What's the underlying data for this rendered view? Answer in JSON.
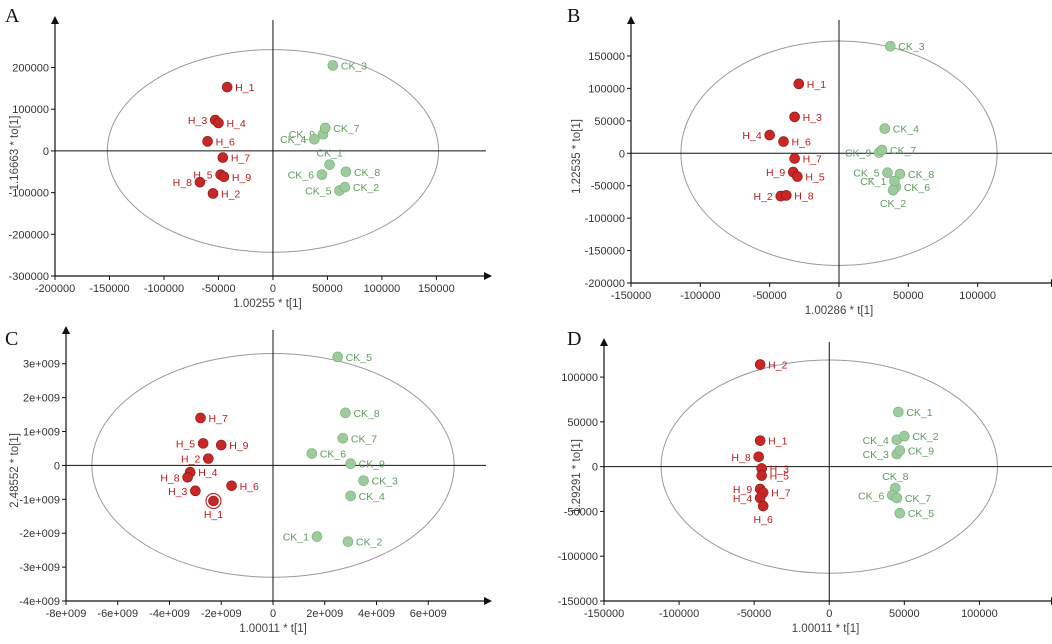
{
  "colors": {
    "h": "#c62828",
    "ck": "#9ccc9c",
    "ck_text": "#5f9a5f",
    "h_text": "#b71c1c",
    "axis": "#111111",
    "ellipse": "#9a9a9a"
  },
  "chart_data": [
    {
      "type": "scatter",
      "panel": "A",
      "xlabel": "1.00255 * t[1]",
      "ylabel": "1.16663 * to[1]",
      "xlim": [
        -200000,
        190000
      ],
      "ylim": [
        -300000,
        290000
      ],
      "xticks": [
        -200000,
        -150000,
        -100000,
        -50000,
        0,
        50000,
        100000,
        150000
      ],
      "xtick_labels": [
        "-200000",
        "-150000",
        "-100000",
        "-50000",
        "0",
        "50000",
        "100000",
        "150000"
      ],
      "yticks": [
        -300000,
        -200000,
        -100000,
        0,
        100000,
        200000
      ],
      "ytick_labels": [
        "-300000",
        "-200000",
        "-100000",
        "0",
        "100000",
        "200000"
      ],
      "ellipse": {
        "rx": 152000,
        "ry": 243000
      },
      "series": [
        {
          "name": "H",
          "points": [
            {
              "label": "H_1",
              "x": -42000,
              "y": 153000,
              "side": "right"
            },
            {
              "label": "H_3",
              "x": -53000,
              "y": 74000,
              "side": "left"
            },
            {
              "label": "H_4",
              "x": -50000,
              "y": 67000,
              "side": "right"
            },
            {
              "label": "H_6",
              "x": -60000,
              "y": 23000,
              "side": "right"
            },
            {
              "label": "H_7",
              "x": -46000,
              "y": -16000,
              "side": "right"
            },
            {
              "label": "H_5",
              "x": -48000,
              "y": -57000,
              "side": "left"
            },
            {
              "label": "H_9",
              "x": -45000,
              "y": -62000,
              "side": "right"
            },
            {
              "label": "H_8",
              "x": -67000,
              "y": -75000,
              "side": "left"
            },
            {
              "label": "H_2",
              "x": -55000,
              "y": -102000,
              "side": "right"
            }
          ]
        },
        {
          "name": "CK",
          "points": [
            {
              "label": "CK_3",
              "x": 55000,
              "y": 205000,
              "side": "right"
            },
            {
              "label": "CK_9",
              "x": 46000,
              "y": 40000,
              "side": "left"
            },
            {
              "label": "CK_7",
              "x": 48000,
              "y": 55000,
              "side": "right"
            },
            {
              "label": "CK_4",
              "x": 38000,
              "y": 28000,
              "side": "left"
            },
            {
              "label": "CK_1",
              "x": 52000,
              "y": -33000,
              "side": "top"
            },
            {
              "label": "CK_6",
              "x": 45000,
              "y": -57000,
              "side": "left"
            },
            {
              "label": "CK_8",
              "x": 67000,
              "y": -50000,
              "side": "right"
            },
            {
              "label": "CK_5",
              "x": 61000,
              "y": -95000,
              "side": "left"
            },
            {
              "label": "CK_2",
              "x": 66000,
              "y": -87000,
              "side": "right"
            }
          ]
        }
      ]
    },
    {
      "type": "scatter",
      "panel": "B",
      "xlabel": "1.00286 * t[1]",
      "ylabel": "1.22535 * to[1]",
      "xlim": [
        -150000,
        150000
      ],
      "ylim": [
        -200000,
        190000
      ],
      "xticks": [
        -150000,
        -100000,
        -50000,
        0,
        50000,
        100000
      ],
      "xtick_labels": [
        "-150000",
        "-100000",
        "-50000",
        "0",
        "50000",
        "100000"
      ],
      "yticks": [
        -200000,
        -150000,
        -100000,
        -50000,
        0,
        50000,
        100000,
        150000
      ],
      "ytick_labels": [
        "-200000",
        "-150000",
        "-100000",
        "-50000",
        "0",
        "50000",
        "100000",
        "150000"
      ],
      "ellipse": {
        "rx": 114000,
        "ry": 173000
      },
      "series": [
        {
          "name": "H",
          "points": [
            {
              "label": "H_1",
              "x": -29000,
              "y": 107000,
              "side": "right"
            },
            {
              "label": "H_3",
              "x": -32000,
              "y": 56000,
              "side": "right"
            },
            {
              "label": "H_4",
              "x": -50000,
              "y": 28000,
              "side": "left"
            },
            {
              "label": "H_6",
              "x": -40000,
              "y": 18000,
              "side": "right"
            },
            {
              "label": "H_7",
              "x": -32000,
              "y": -8000,
              "side": "right"
            },
            {
              "label": "H_9",
              "x": -33000,
              "y": -29000,
              "side": "left"
            },
            {
              "label": "H_5",
              "x": -30000,
              "y": -36000,
              "side": "right"
            },
            {
              "label": "H_2",
              "x": -42000,
              "y": -66000,
              "side": "left"
            },
            {
              "label": "H_8",
              "x": -38000,
              "y": -65000,
              "side": "right"
            }
          ]
        },
        {
          "name": "CK",
          "points": [
            {
              "label": "CK_3",
              "x": 37000,
              "y": 165000,
              "side": "right"
            },
            {
              "label": "CK_4",
              "x": 33000,
              "y": 38000,
              "side": "right"
            },
            {
              "label": "CK_9",
              "x": 29000,
              "y": 1000,
              "side": "left"
            },
            {
              "label": "CK_7",
              "x": 31000,
              "y": 5000,
              "side": "right"
            },
            {
              "label": "CK_5",
              "x": 35000,
              "y": -30000,
              "side": "left"
            },
            {
              "label": "CK_8",
              "x": 44000,
              "y": -32000,
              "side": "right"
            },
            {
              "label": "CK_6",
              "x": 41000,
              "y": -52000,
              "side": "right"
            },
            {
              "label": "CK_1",
              "x": 40000,
              "y": -43000,
              "side": "left"
            },
            {
              "label": "CK_2",
              "x": 39000,
              "y": -57000,
              "side": "bottom"
            }
          ]
        }
      ]
    },
    {
      "type": "scatter",
      "panel": "C",
      "xlabel": "1.00011 * t[1]",
      "ylabel": "2.48552 * to[1]",
      "xlim": [
        -8000000000,
        8000000000
      ],
      "ylim": [
        -4000000000,
        3700000000
      ],
      "xticks": [
        -8000000000,
        -6000000000,
        -4000000000,
        -2000000000,
        0,
        2000000000,
        4000000000,
        6000000000
      ],
      "xtick_labels": [
        "-8e+009",
        "-6e+009",
        "-4e+009",
        "-2e+009",
        "0",
        "2e+009",
        "4e+009",
        "6e+009"
      ],
      "yticks": [
        -4000000000,
        -3000000000,
        -2000000000,
        -1000000000,
        0,
        1000000000,
        2000000000,
        3000000000
      ],
      "ytick_labels": [
        "-4e+009",
        "-3e+009",
        "-2e+009",
        "-1e+009",
        "0",
        "1e+009",
        "2e+009",
        "3e+009"
      ],
      "ellipse": {
        "rx": 7000000000,
        "ry": 3300000000
      },
      "series": [
        {
          "name": "H",
          "points": [
            {
              "label": "H_7",
              "x": -2800000000,
              "y": 1400000000,
              "side": "right"
            },
            {
              "label": "H_5",
              "x": -2700000000,
              "y": 650000000,
              "side": "left"
            },
            {
              "label": "H_9",
              "x": -2000000000,
              "y": 600000000,
              "side": "right"
            },
            {
              "label": "H_2",
              "x": -2500000000,
              "y": 200000000,
              "side": "left"
            },
            {
              "label": "H_4",
              "x": -3200000000,
              "y": -200000000,
              "side": "right"
            },
            {
              "label": "H_8",
              "x": -3300000000,
              "y": -350000000,
              "side": "left"
            },
            {
              "label": "H_3",
              "x": -3000000000,
              "y": -750000000,
              "side": "left"
            },
            {
              "label": "H_6",
              "x": -1600000000,
              "y": -600000000,
              "side": "right"
            },
            {
              "label": "H_1",
              "x": -2300000000,
              "y": -1050000000,
              "side": "bottom",
              "ring": true
            }
          ]
        },
        {
          "name": "CK",
          "points": [
            {
              "label": "CK_5",
              "x": 2500000000,
              "y": 3200000000,
              "side": "right"
            },
            {
              "label": "CK_8",
              "x": 2800000000,
              "y": 1550000000,
              "side": "right"
            },
            {
              "label": "CK_7",
              "x": 2700000000,
              "y": 800000000,
              "side": "right"
            },
            {
              "label": "CK_6",
              "x": 1500000000,
              "y": 350000000,
              "side": "right"
            },
            {
              "label": "CK_9",
              "x": 3000000000,
              "y": 50000000,
              "side": "right"
            },
            {
              "label": "CK_3",
              "x": 3500000000,
              "y": -450000000,
              "side": "right"
            },
            {
              "label": "CK_4",
              "x": 3000000000,
              "y": -900000000,
              "side": "right"
            },
            {
              "label": "CK_1",
              "x": 1700000000,
              "y": -2100000000,
              "side": "left"
            },
            {
              "label": "CK_2",
              "x": 2900000000,
              "y": -2250000000,
              "side": "right"
            }
          ]
        }
      ]
    },
    {
      "type": "scatter",
      "panel": "D",
      "xlabel": "1.00011 * t[1]",
      "ylabel": "1.29291 * to[1]",
      "xlim": [
        -150000,
        145000
      ],
      "ylim": [
        -150000,
        128000
      ],
      "xticks": [
        -150000,
        -100000,
        -50000,
        0,
        50000,
        100000
      ],
      "xtick_labels": [
        "-150000",
        "-100000",
        "-50000",
        "0",
        "50000",
        "100000"
      ],
      "yticks": [
        -150000,
        -100000,
        -50000,
        0,
        50000,
        100000
      ],
      "ytick_labels": [
        "-150000",
        "-100000",
        "-50000",
        "0",
        "50000",
        "100000"
      ],
      "ellipse": {
        "rx": 112000,
        "ry": 119000
      },
      "series": [
        {
          "name": "H",
          "points": [
            {
              "label": "H_2",
              "x": -46000,
              "y": 114000,
              "side": "right"
            },
            {
              "label": "H_1",
              "x": -46000,
              "y": 29000,
              "side": "right"
            },
            {
              "label": "H_8",
              "x": -47000,
              "y": 11000,
              "side": "left"
            },
            {
              "label": "H_3",
              "x": -45000,
              "y": -2000,
              "side": "right"
            },
            {
              "label": "H_5",
              "x": -45000,
              "y": -10000,
              "side": "right"
            },
            {
              "label": "H_9",
              "x": -46000,
              "y": -25000,
              "side": "left"
            },
            {
              "label": "H_7",
              "x": -44000,
              "y": -29000,
              "side": "right"
            },
            {
              "label": "H_4",
              "x": -46000,
              "y": -35000,
              "side": "left"
            },
            {
              "label": "H_6",
              "x": -44000,
              "y": -44000,
              "side": "bottom"
            }
          ]
        },
        {
          "name": "CK",
          "points": [
            {
              "label": "CK_1",
              "x": 46000,
              "y": 61000,
              "side": "right"
            },
            {
              "label": "CK_4",
              "x": 45000,
              "y": 30000,
              "side": "left"
            },
            {
              "label": "CK_2",
              "x": 50000,
              "y": 34000,
              "side": "right"
            },
            {
              "label": "CK_3",
              "x": 45000,
              "y": 14000,
              "side": "left"
            },
            {
              "label": "CK_9",
              "x": 47000,
              "y": 18000,
              "side": "right"
            },
            {
              "label": "CK_8",
              "x": 44000,
              "y": -24000,
              "side": "top"
            },
            {
              "label": "CK_6",
              "x": 42000,
              "y": -32000,
              "side": "left"
            },
            {
              "label": "CK_7",
              "x": 45000,
              "y": -35000,
              "side": "right"
            },
            {
              "label": "CK_5",
              "x": 47000,
              "y": -52000,
              "side": "right"
            }
          ]
        }
      ]
    }
  ]
}
